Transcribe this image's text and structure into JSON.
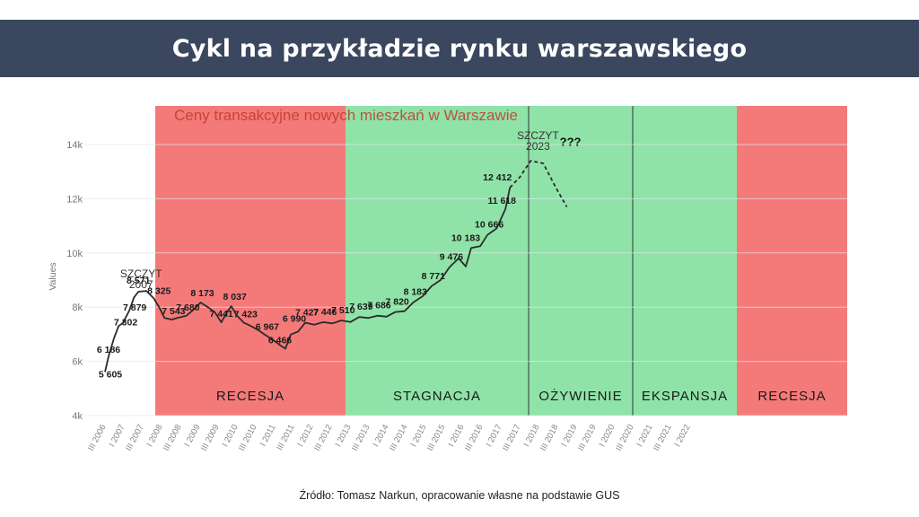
{
  "header": {
    "title": "Cykl na przykładzie rynku warszawskiego"
  },
  "source": "Źródło: Tomasz Narkun, opracowanie własne na podstawie GUS",
  "colors": {
    "header_bg": "#3b475f",
    "recession": "#f47a7a",
    "stagnation": "#8fe3a8",
    "line": "#2b2b2b"
  },
  "chart_data": {
    "type": "line",
    "title": "Ceny transakcyjne nowych mieszkań w Warszawie",
    "ylabel": "Values",
    "ylim": [
      4000,
      14700
    ],
    "yticks": [
      4000,
      6000,
      8000,
      10000,
      12000,
      14000
    ],
    "ytick_labels": [
      "4k",
      "6k",
      "8k",
      "10k",
      "12k",
      "14k"
    ],
    "xtick_labels": [
      "III 2006",
      "I 2007",
      "III 2007",
      "I 2008",
      "III 2008",
      "I 2009",
      "III 2009",
      "I 2010",
      "III 2010",
      "I 2011",
      "III 2011",
      "I 2012",
      "III 2012",
      "I 2013",
      "III 2013",
      "I 2014",
      "III 2014",
      "I 2015",
      "III 2015",
      "I 2016",
      "III 2016",
      "I 2017",
      "III 2017",
      "I 2018",
      "III 2018",
      "I 2019",
      "III 2019",
      "I 2020",
      "III 2020",
      "I 2021",
      "III 2021",
      "I 2022"
    ],
    "phases": [
      {
        "label": "RECESJA",
        "start": "I 2008",
        "end": "I 2013",
        "color": "#f47a7a"
      },
      {
        "label": "STAGNACJA",
        "start": "I 2013",
        "end": "I 2017",
        "color": "#8fe3a8"
      },
      {
        "label": "OŻYWIENIE",
        "start": "I 2017",
        "end": "I 2020",
        "color": "#8fe3a8"
      },
      {
        "label": "EKSPANSJA",
        "start": "I 2020",
        "end": "I 2023",
        "color": "#8fe3a8"
      },
      {
        "label": "RECESJA",
        "start": "I 2023",
        "end": "2024",
        "color": "#f47a7a"
      }
    ],
    "series": [
      {
        "values": [
          {
            "t": 0.0,
            "y": 5605
          },
          {
            "t": 0.2,
            "y": 6186
          },
          {
            "t": 0.5,
            "y": 6850
          },
          {
            "t": 0.75,
            "y": 7302
          },
          {
            "t": 1.0,
            "y": 7420
          },
          {
            "t": 1.35,
            "y": 7879
          },
          {
            "t": 1.6,
            "y": 8350
          },
          {
            "t": 1.85,
            "y": 8571
          },
          {
            "t": 2.3,
            "y": 8600
          },
          {
            "t": 2.7,
            "y": 8325
          },
          {
            "t": 3.0,
            "y": 8000
          },
          {
            "t": 3.3,
            "y": 7600
          },
          {
            "t": 3.7,
            "y": 7543
          },
          {
            "t": 4.1,
            "y": 7620
          },
          {
            "t": 4.5,
            "y": 7680
          },
          {
            "t": 4.9,
            "y": 7900
          },
          {
            "t": 5.3,
            "y": 8173
          },
          {
            "t": 5.7,
            "y": 8000
          },
          {
            "t": 6.1,
            "y": 7800
          },
          {
            "t": 6.45,
            "y": 7441
          },
          {
            "t": 6.75,
            "y": 7800
          },
          {
            "t": 7.0,
            "y": 8037
          },
          {
            "t": 7.3,
            "y": 7700
          },
          {
            "t": 7.7,
            "y": 7423
          },
          {
            "t": 8.1,
            "y": 7300
          },
          {
            "t": 8.5,
            "y": 7150
          },
          {
            "t": 8.9,
            "y": 6967
          },
          {
            "t": 9.3,
            "y": 6800
          },
          {
            "t": 9.7,
            "y": 6600
          },
          {
            "t": 10.0,
            "y": 6466
          },
          {
            "t": 10.3,
            "y": 6990
          },
          {
            "t": 10.7,
            "y": 7100
          },
          {
            "t": 11.1,
            "y": 7427
          },
          {
            "t": 11.6,
            "y": 7350
          },
          {
            "t": 12.1,
            "y": 7446
          },
          {
            "t": 12.6,
            "y": 7400
          },
          {
            "t": 13.1,
            "y": 7510
          },
          {
            "t": 13.6,
            "y": 7450
          },
          {
            "t": 14.1,
            "y": 7639
          },
          {
            "t": 14.6,
            "y": 7600
          },
          {
            "t": 15.1,
            "y": 7686
          },
          {
            "t": 15.6,
            "y": 7650
          },
          {
            "t": 16.1,
            "y": 7820
          },
          {
            "t": 16.6,
            "y": 7850
          },
          {
            "t": 17.1,
            "y": 8183
          },
          {
            "t": 17.6,
            "y": 8400
          },
          {
            "t": 18.1,
            "y": 8771
          },
          {
            "t": 18.6,
            "y": 9000
          },
          {
            "t": 19.1,
            "y": 9476
          },
          {
            "t": 19.6,
            "y": 9800
          },
          {
            "t": 20.0,
            "y": 9500
          },
          {
            "t": 20.3,
            "y": 10183
          },
          {
            "t": 20.8,
            "y": 10250
          },
          {
            "t": 21.2,
            "y": 10666
          },
          {
            "t": 21.7,
            "y": 10900
          },
          {
            "t": 22.2,
            "y": 11618
          },
          {
            "t": 22.45,
            "y": 12412
          }
        ],
        "projection": [
          {
            "t": 22.45,
            "y": 12412
          },
          {
            "t": 23.0,
            "y": 12800
          },
          {
            "t": 23.6,
            "y": 13400
          },
          {
            "t": 24.3,
            "y": 13300
          },
          {
            "t": 25.0,
            "y": 12400
          },
          {
            "t": 25.6,
            "y": 11700
          }
        ]
      }
    ],
    "data_labels": [
      {
        "text": "5 605",
        "t": 0.0,
        "y": 5605,
        "dx": 6,
        "dy": 6
      },
      {
        "text": "6 186",
        "t": 0.2,
        "y": 6186,
        "dx": 0,
        "dy": -4
      },
      {
        "text": "7 302",
        "t": 0.75,
        "y": 7302,
        "dx": 8,
        "dy": -1
      },
      {
        "text": "7 879",
        "t": 1.35,
        "y": 7879,
        "dx": 6,
        "dy": 0
      },
      {
        "text": "8 571",
        "t": 1.85,
        "y": 8571,
        "dx": 0,
        "dy": -9
      },
      {
        "text": "8 325",
        "t": 2.7,
        "y": 8325,
        "dx": 6,
        "dy": -5
      },
      {
        "text": "7 543",
        "t": 3.7,
        "y": 7543,
        "dx": 2,
        "dy": -6
      },
      {
        "text": "7 680",
        "t": 4.5,
        "y": 7680,
        "dx": 2,
        "dy": -6
      },
      {
        "text": "8 173",
        "t": 5.3,
        "y": 8173,
        "dx": 2,
        "dy": -7
      },
      {
        "text": "7 441",
        "t": 6.45,
        "y": 7441,
        "dx": 0,
        "dy": -6
      },
      {
        "text": "8 037",
        "t": 7.0,
        "y": 8037,
        "dx": 4,
        "dy": -7
      },
      {
        "text": "7 423",
        "t": 7.7,
        "y": 7423,
        "dx": 2,
        "dy": -6
      },
      {
        "text": "6 967",
        "t": 8.9,
        "y": 6967,
        "dx": 2,
        "dy": -6
      },
      {
        "text": "6 466",
        "t": 10.0,
        "y": 6466,
        "dx": -6,
        "dy": -6
      },
      {
        "text": "6 990",
        "t": 10.3,
        "y": 6990,
        "dx": 4,
        "dy": -14
      },
      {
        "text": "7 427",
        "t": 11.1,
        "y": 7427,
        "dx": 2,
        "dy": -8
      },
      {
        "text": "7 446",
        "t": 12.1,
        "y": 7446,
        "dx": 2,
        "dy": -8
      },
      {
        "text": "7 510",
        "t": 13.1,
        "y": 7510,
        "dx": 2,
        "dy": -8
      },
      {
        "text": "7 639",
        "t": 14.1,
        "y": 7639,
        "dx": 2,
        "dy": -8
      },
      {
        "text": "7 686",
        "t": 15.1,
        "y": 7686,
        "dx": 2,
        "dy": -8
      },
      {
        "text": "7 820",
        "t": 16.1,
        "y": 7820,
        "dx": 2,
        "dy": -8
      },
      {
        "text": "8 183",
        "t": 17.1,
        "y": 8183,
        "dx": 2,
        "dy": -8
      },
      {
        "text": "8 771",
        "t": 18.1,
        "y": 8771,
        "dx": 2,
        "dy": -8
      },
      {
        "text": "9 476",
        "t": 19.1,
        "y": 9476,
        "dx": 2,
        "dy": -8
      },
      {
        "text": "10 183",
        "t": 20.3,
        "y": 10183,
        "dx": -6,
        "dy": -8
      },
      {
        "text": "10 666",
        "t": 21.2,
        "y": 10666,
        "dx": 2,
        "dy": -8
      },
      {
        "text": "11 618",
        "t": 22.2,
        "y": 11618,
        "dx": -4,
        "dy": -6
      },
      {
        "text": "12 412",
        "t": 22.45,
        "y": 12412,
        "dx": -14,
        "dy": -8
      }
    ],
    "annotations": [
      {
        "text": "SZCZYT",
        "t": 2.0,
        "y": 9100
      },
      {
        "text": "2007",
        "t": 2.0,
        "y": 8700
      },
      {
        "text": "SZCZYT",
        "t": 24.0,
        "y": 14200
      },
      {
        "text": "2023",
        "t": 24.0,
        "y": 13800
      },
      {
        "text": "???",
        "t": 25.8,
        "y": 13950
      }
    ],
    "grid": true
  }
}
